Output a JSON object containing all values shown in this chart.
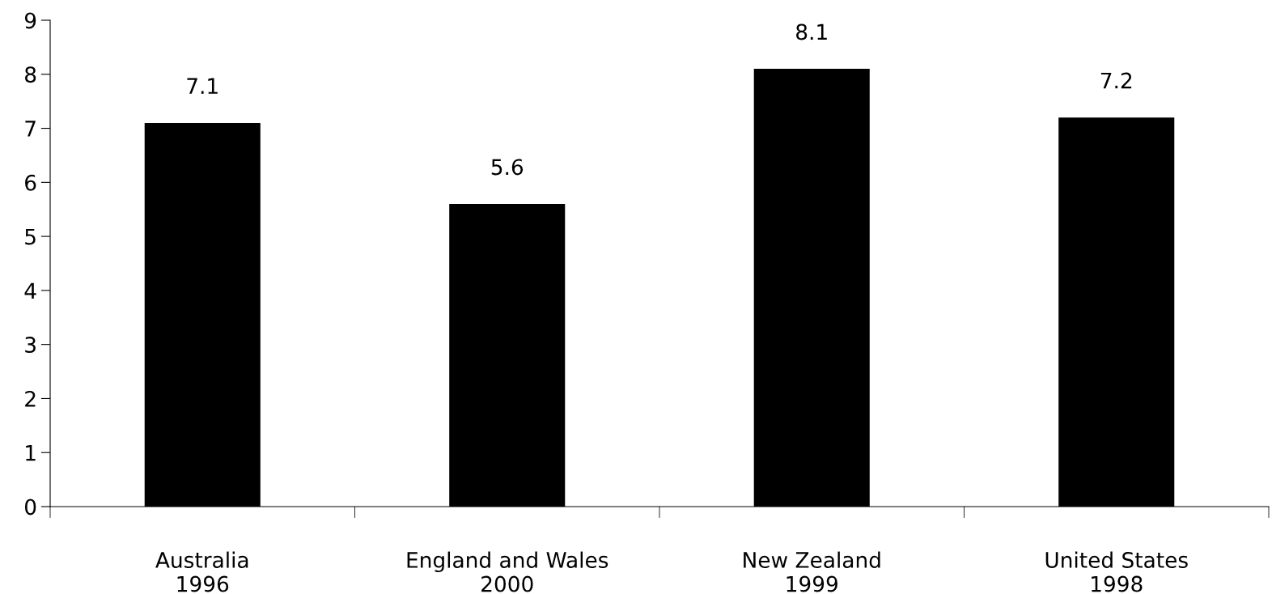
{
  "chart_data": {
    "type": "bar",
    "categories": [
      "Australia\n1996",
      "England and Wales\n2000",
      "New Zealand\n1999",
      "United States\n1998"
    ],
    "values": [
      7.1,
      5.6,
      8.1,
      7.2
    ],
    "color": "#000000",
    "ylim": [
      0,
      9
    ],
    "yticks": [
      0,
      1,
      2,
      3,
      4,
      5,
      6,
      7,
      8,
      9
    ],
    "grid": false,
    "data_labels": true
  }
}
